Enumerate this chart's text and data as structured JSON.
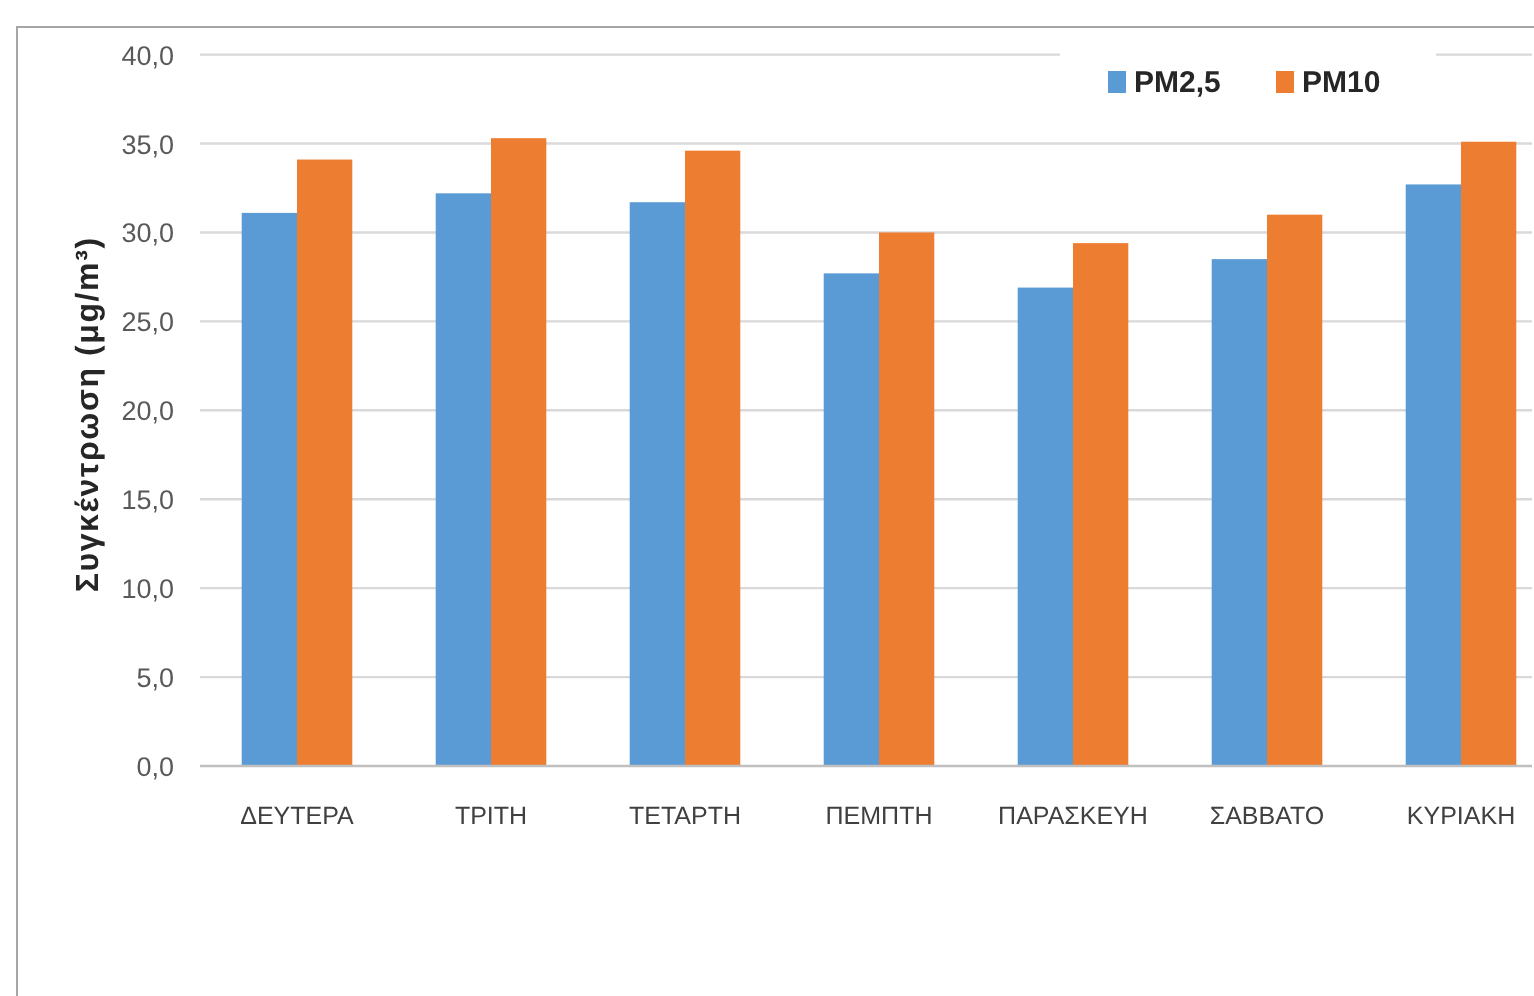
{
  "chart_data": {
    "type": "bar",
    "ylabel": "Συγκέντρωση (μg/m³)",
    "categories": [
      "ΔΕΥΤΕΡΑ",
      "ΤΡΙΤΗ",
      "ΤΕΤΑΡΤΗ",
      "ΠΕΜΠΤΗ",
      "ΠΑΡΑΣΚΕΥΗ",
      "ΣΑΒΒΑΤΟ",
      "ΚΥΡΙΑΚΗ"
    ],
    "series": [
      {
        "name": "PM2,5",
        "color": "#5b9bd5",
        "values": [
          31.1,
          32.2,
          31.7,
          27.7,
          26.9,
          28.5,
          32.7
        ]
      },
      {
        "name": "PM10",
        "color": "#ed7d31",
        "values": [
          34.1,
          35.3,
          34.6,
          30.0,
          29.4,
          31.0,
          35.1
        ]
      }
    ],
    "ylim": [
      0,
      40
    ],
    "yticks": [
      {
        "value": 0,
        "label": "0,0"
      },
      {
        "value": 5,
        "label": "5,0"
      },
      {
        "value": 10,
        "label": "10,0"
      },
      {
        "value": 15,
        "label": "15,0"
      },
      {
        "value": 20,
        "label": "20,0"
      },
      {
        "value": 25,
        "label": "25,0"
      },
      {
        "value": 30,
        "label": "30,0"
      },
      {
        "value": 35,
        "label": "35,0"
      },
      {
        "value": 40,
        "label": "40,0"
      }
    ],
    "grid": "y",
    "legend": "top right"
  }
}
